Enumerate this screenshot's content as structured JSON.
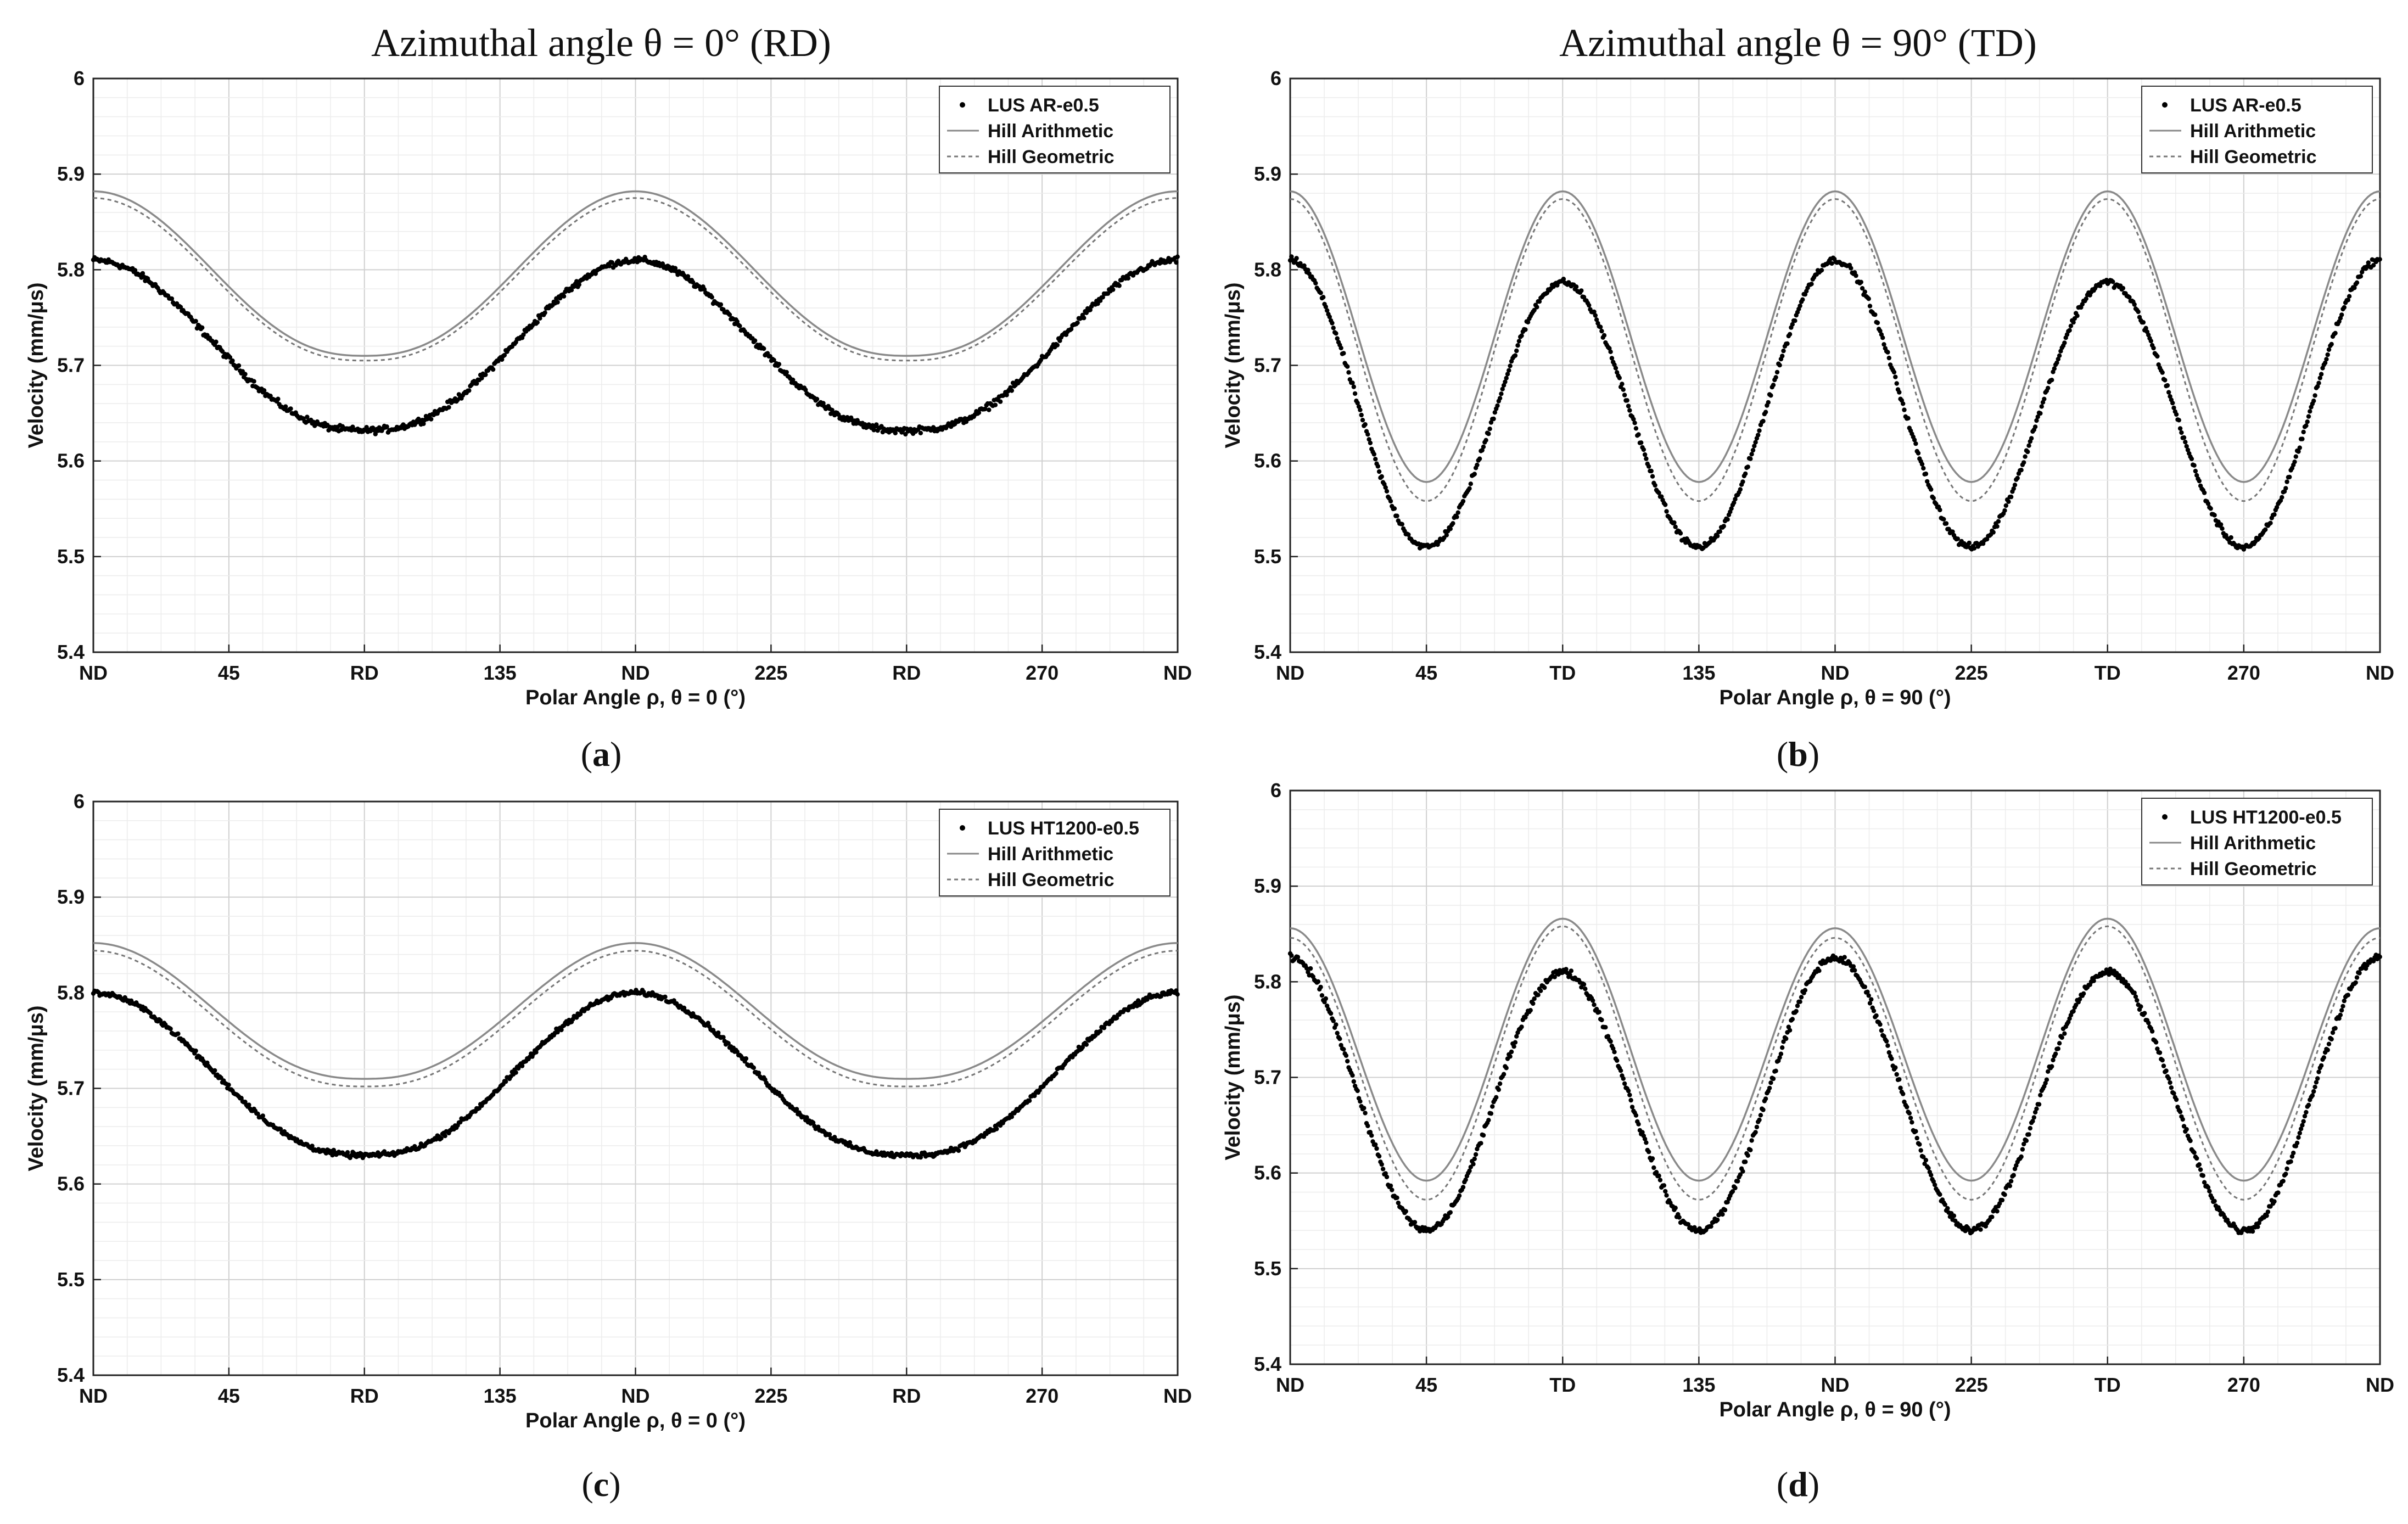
{
  "figure": {
    "column_titles": [
      "Azimuthal angle θ = 0° (RD)",
      "Azimuthal angle θ = 90° (TD)"
    ]
  },
  "chart_data": [
    {
      "type": "line",
      "panel": "a",
      "caption_letter": "a",
      "xlabel": "Polar Angle ρ, θ = 0 (°)",
      "ylabel": "Velocity (mm/μs)",
      "xlim": [
        0,
        360
      ],
      "ylim": [
        5.4,
        6.0
      ],
      "y_ticks": [
        "5.4",
        "5.5",
        "5.6",
        "5.7",
        "5.8",
        "5.9",
        "6"
      ],
      "x_ticks": [
        "ND",
        "45",
        "RD",
        "135",
        "ND",
        "225",
        "RD",
        "270",
        "ND"
      ],
      "legend": [
        "LUS AR-e0.5",
        "Hill Arithmetic",
        "Hill Geometric"
      ],
      "legend_position": "top-right",
      "grid": true,
      "series": [
        {
          "name": "Hill Arithmetic",
          "style": "solid",
          "min": 5.71,
          "max": 5.882,
          "period": 180,
          "phase": 0,
          "shape": "flat"
        },
        {
          "name": "Hill Geometric",
          "style": "dotted",
          "min": 5.705,
          "max": 5.875,
          "period": 180,
          "phase": 0,
          "shape": "flat"
        },
        {
          "name": "LUS AR-e0.5",
          "style": "points",
          "min": 5.632,
          "max": 5.81,
          "period": 180,
          "phase": 0,
          "shape": "flat",
          "noise": 0.005
        }
      ]
    },
    {
      "type": "line",
      "panel": "b",
      "caption_letter": "b",
      "xlabel": "Polar Angle ρ, θ = 90 (°)",
      "ylabel": "Velocity (mm/μs)",
      "xlim": [
        0,
        360
      ],
      "ylim": [
        5.4,
        6.0
      ],
      "y_ticks": [
        "5.4",
        "5.5",
        "5.6",
        "5.7",
        "5.8",
        "5.9",
        "6"
      ],
      "x_ticks": [
        "ND",
        "45",
        "TD",
        "135",
        "ND",
        "225",
        "TD",
        "270",
        "ND"
      ],
      "legend": [
        "LUS AR-e0.5",
        "Hill Arithmetic",
        "Hill Geometric"
      ],
      "legend_position": "top-right",
      "grid": true,
      "series": [
        {
          "name": "Hill Arithmetic",
          "style": "solid",
          "min": 5.578,
          "max": 5.882,
          "period": 90,
          "phase": 0,
          "shape": "sine"
        },
        {
          "name": "Hill Geometric",
          "style": "dotted",
          "min": 5.558,
          "max": 5.874,
          "period": 90,
          "phase": 0,
          "shape": "sine"
        },
        {
          "name": "LUS AR-e0.5",
          "style": "points",
          "min": 5.51,
          "max": 5.81,
          "period": 90,
          "phase": 0,
          "shape": "sine",
          "alt_max": 5.787,
          "noise": 0.005
        }
      ]
    },
    {
      "type": "line",
      "panel": "c",
      "caption_letter": "c",
      "xlabel": "Polar Angle ρ, θ = 0 (°)",
      "ylabel": "Velocity (mm/μs)",
      "xlim": [
        0,
        360
      ],
      "ylim": [
        5.4,
        6.0
      ],
      "y_ticks": [
        "5.4",
        "5.5",
        "5.6",
        "5.7",
        "5.8",
        "5.9",
        "6"
      ],
      "x_ticks": [
        "ND",
        "45",
        "RD",
        "135",
        "ND",
        "225",
        "RD",
        "270",
        "ND"
      ],
      "legend": [
        "LUS HT1200-e0.5",
        "Hill Arithmetic",
        "Hill Geometric"
      ],
      "legend_position": "top-right",
      "grid": true,
      "series": [
        {
          "name": "Hill Arithmetic",
          "style": "solid",
          "min": 5.71,
          "max": 5.852,
          "period": 180,
          "phase": 0,
          "shape": "flat"
        },
        {
          "name": "Hill Geometric",
          "style": "dotted",
          "min": 5.702,
          "max": 5.844,
          "period": 180,
          "phase": 0,
          "shape": "flat"
        },
        {
          "name": "LUS HT1200-e0.5",
          "style": "points",
          "min": 5.63,
          "max": 5.8,
          "period": 180,
          "phase": 0,
          "shape": "flat",
          "noise": 0.004
        }
      ]
    },
    {
      "type": "line",
      "panel": "d",
      "caption_letter": "d",
      "xlabel": "Polar Angle ρ, θ = 90 (°)",
      "ylabel": "Velocity (mm/μs)",
      "xlim": [
        0,
        360
      ],
      "ylim": [
        5.4,
        6.0
      ],
      "y_ticks": [
        "5.4",
        "5.5",
        "5.6",
        "5.7",
        "5.8",
        "5.9",
        "6"
      ],
      "x_ticks": [
        "ND",
        "45",
        "TD",
        "135",
        "ND",
        "225",
        "TD",
        "270",
        "ND"
      ],
      "legend": [
        "LUS HT1200-e0.5",
        "Hill Arithmetic",
        "Hill Geometric"
      ],
      "legend_position": "top-right",
      "grid": true,
      "series": [
        {
          "name": "Hill Arithmetic",
          "style": "solid",
          "min": 5.592,
          "max": 5.856,
          "period": 90,
          "phase": 0,
          "shape": "sine",
          "alt_max": 5.866
        },
        {
          "name": "Hill Geometric",
          "style": "dotted",
          "min": 5.572,
          "max": 5.846,
          "period": 90,
          "phase": 0,
          "shape": "sine",
          "alt_max": 5.858
        },
        {
          "name": "LUS HT1200-e0.5",
          "style": "points",
          "min": 5.54,
          "max": 5.825,
          "period": 90,
          "phase": 0,
          "shape": "sine",
          "alt_max": 5.81,
          "noise": 0.006
        }
      ]
    }
  ]
}
